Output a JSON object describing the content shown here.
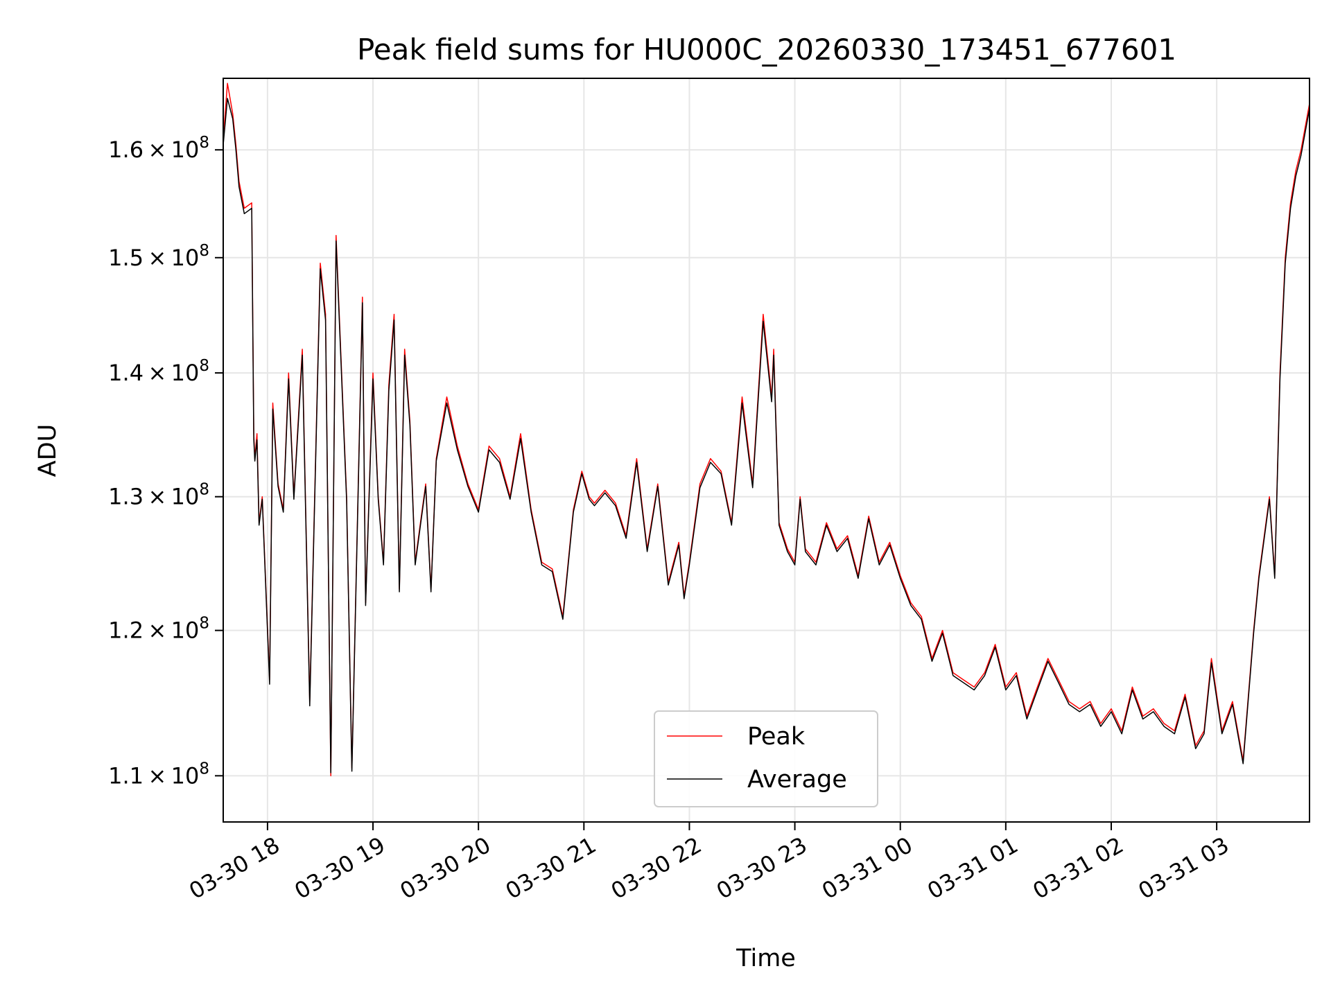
{
  "chart_data": {
    "type": "line",
    "title": "Peak field sums for HU000C_20260330_173451_677601",
    "xlabel": "Time",
    "ylabel": "ADU",
    "y_scale": "log",
    "ylim": [
      107000000,
      167000000
    ],
    "xlim_hours": [
      -0.42,
      9.88
    ],
    "x_ticks": [
      {
        "label": "03-30 18",
        "hour": 0
      },
      {
        "label": "03-30 19",
        "hour": 1
      },
      {
        "label": "03-30 20",
        "hour": 2
      },
      {
        "label": "03-30 21",
        "hour": 3
      },
      {
        "label": "03-30 22",
        "hour": 4
      },
      {
        "label": "03-30 23",
        "hour": 5
      },
      {
        "label": "03-31 00",
        "hour": 6
      },
      {
        "label": "03-31 01",
        "hour": 7
      },
      {
        "label": "03-31 02",
        "hour": 8
      },
      {
        "label": "03-31 03",
        "hour": 9
      }
    ],
    "y_ticks": [
      {
        "base": "1.1",
        "value": 110000000
      },
      {
        "base": "1.2",
        "value": 120000000
      },
      {
        "base": "1.3",
        "value": 130000000
      },
      {
        "base": "1.4",
        "value": 140000000
      },
      {
        "base": "1.5",
        "value": 150000000
      },
      {
        "base": "1.6",
        "value": 160000000
      }
    ],
    "y_tick_mult": "×",
    "y_tick_power_base": "10",
    "y_tick_exponent": "8",
    "grid": true,
    "legend_position": "lower-center",
    "series": [
      {
        "name": "Peak",
        "color": "#ff0000",
        "x": [
          -0.42,
          -0.38,
          -0.33,
          -0.3,
          -0.27,
          -0.22,
          -0.15,
          -0.13,
          -0.12,
          -0.1,
          -0.08,
          -0.05,
          0.02,
          0.05,
          0.1,
          0.15,
          0.2,
          0.25,
          0.33,
          0.4,
          0.5,
          0.55,
          0.6,
          0.65,
          0.75,
          0.8,
          0.9,
          0.93,
          1.0,
          1.05,
          1.1,
          1.15,
          1.2,
          1.25,
          1.3,
          1.35,
          1.4,
          1.45,
          1.5,
          1.55,
          1.6,
          1.7,
          1.8,
          1.9,
          2.0,
          2.1,
          2.2,
          2.3,
          2.4,
          2.5,
          2.6,
          2.7,
          2.8,
          2.9,
          2.98,
          3.05,
          3.1,
          3.2,
          3.3,
          3.4,
          3.5,
          3.6,
          3.7,
          3.8,
          3.9,
          3.95,
          4.0,
          4.1,
          4.2,
          4.3,
          4.4,
          4.5,
          4.6,
          4.7,
          4.78,
          4.8,
          4.85,
          4.93,
          5.0,
          5.05,
          5.1,
          5.2,
          5.3,
          5.4,
          5.5,
          5.6,
          5.7,
          5.8,
          5.9,
          6.0,
          6.1,
          6.2,
          6.3,
          6.4,
          6.5,
          6.6,
          6.7,
          6.8,
          6.9,
          7.0,
          7.1,
          7.2,
          7.3,
          7.4,
          7.5,
          7.6,
          7.7,
          7.8,
          7.9,
          8.0,
          8.1,
          8.2,
          8.3,
          8.4,
          8.5,
          8.6,
          8.7,
          8.8,
          8.88,
          8.95,
          9.05,
          9.15,
          9.25,
          9.35,
          9.4,
          9.5,
          9.55,
          9.6,
          9.65,
          9.7,
          9.75,
          9.8,
          9.88
        ],
        "values": [
          161000000,
          166500000,
          163500000,
          160500000,
          157000000,
          154500000,
          155000000,
          135000000,
          133000000,
          135000000,
          128000000,
          130000000,
          116500000,
          137500000,
          131000000,
          129000000,
          140000000,
          130000000,
          142000000,
          115000000,
          149500000,
          145000000,
          110000000,
          152000000,
          130000000,
          110500000,
          146500000,
          122000000,
          140000000,
          130000000,
          125000000,
          139000000,
          145000000,
          123000000,
          142000000,
          136000000,
          125000000,
          128000000,
          131000000,
          123000000,
          133000000,
          138000000,
          134000000,
          131000000,
          129000000,
          134000000,
          133000000,
          130000000,
          135000000,
          129000000,
          125000000,
          124500000,
          121000000,
          129000000,
          132000000,
          130000000,
          129500000,
          130500000,
          129500000,
          127000000,
          133000000,
          126000000,
          131000000,
          123500000,
          126500000,
          122500000,
          125000000,
          131000000,
          133000000,
          132000000,
          128000000,
          138000000,
          131000000,
          145000000,
          138000000,
          142000000,
          128000000,
          126000000,
          125000000,
          130000000,
          126000000,
          125000000,
          128000000,
          126000000,
          127000000,
          124000000,
          128500000,
          125000000,
          126500000,
          124000000,
          122000000,
          121000000,
          118000000,
          120000000,
          117000000,
          116500000,
          116000000,
          117000000,
          119000000,
          116000000,
          117000000,
          114000000,
          116000000,
          118000000,
          116500000,
          115000000,
          114500000,
          115000000,
          113500000,
          114500000,
          113000000,
          116000000,
          114000000,
          114500000,
          113500000,
          113000000,
          115500000,
          112000000,
          113000000,
          118000000,
          113000000,
          115000000,
          111000000,
          120000000,
          124000000,
          130000000,
          124000000,
          140000000,
          150000000,
          155000000,
          158000000,
          160000000,
          164500000
        ],
        "line_width": 1
      },
      {
        "name": "Average",
        "color": "#000000",
        "x": [
          -0.42,
          -0.38,
          -0.33,
          -0.3,
          -0.27,
          -0.22,
          -0.15,
          -0.13,
          -0.12,
          -0.1,
          -0.08,
          -0.05,
          0.02,
          0.05,
          0.1,
          0.15,
          0.2,
          0.25,
          0.33,
          0.4,
          0.5,
          0.55,
          0.6,
          0.65,
          0.75,
          0.8,
          0.9,
          0.93,
          1.0,
          1.05,
          1.1,
          1.15,
          1.2,
          1.25,
          1.3,
          1.35,
          1.4,
          1.45,
          1.5,
          1.55,
          1.6,
          1.7,
          1.8,
          1.9,
          2.0,
          2.1,
          2.2,
          2.3,
          2.4,
          2.5,
          2.6,
          2.7,
          2.8,
          2.9,
          2.98,
          3.05,
          3.1,
          3.2,
          3.3,
          3.4,
          3.5,
          3.6,
          3.7,
          3.8,
          3.9,
          3.95,
          4.0,
          4.1,
          4.2,
          4.3,
          4.4,
          4.5,
          4.6,
          4.7,
          4.78,
          4.8,
          4.85,
          4.93,
          5.0,
          5.05,
          5.1,
          5.2,
          5.3,
          5.4,
          5.5,
          5.6,
          5.7,
          5.8,
          5.9,
          6.0,
          6.1,
          6.2,
          6.3,
          6.4,
          6.5,
          6.6,
          6.7,
          6.8,
          6.9,
          7.0,
          7.1,
          7.2,
          7.3,
          7.4,
          7.5,
          7.6,
          7.7,
          7.8,
          7.9,
          8.0,
          8.1,
          8.2,
          8.3,
          8.4,
          8.5,
          8.6,
          8.7,
          8.8,
          8.88,
          8.95,
          9.05,
          9.15,
          9.25,
          9.35,
          9.4,
          9.5,
          9.55,
          9.6,
          9.65,
          9.7,
          9.75,
          9.8,
          9.88
        ],
        "values": [
          160500000,
          165000000,
          163000000,
          160000000,
          156500000,
          154000000,
          154500000,
          134500000,
          132800000,
          134500000,
          127800000,
          129800000,
          116200000,
          137000000,
          130800000,
          128800000,
          139500000,
          129800000,
          141500000,
          114700000,
          149000000,
          144500000,
          110200000,
          151500000,
          129700000,
          110300000,
          146000000,
          121800000,
          139500000,
          129800000,
          124800000,
          138500000,
          144500000,
          122800000,
          141500000,
          135700000,
          124800000,
          127800000,
          130800000,
          122800000,
          132800000,
          137500000,
          133700000,
          130800000,
          128800000,
          133700000,
          132700000,
          129800000,
          134600000,
          128800000,
          124800000,
          124300000,
          120800000,
          128800000,
          131800000,
          129800000,
          129300000,
          130300000,
          129300000,
          126800000,
          132700000,
          125800000,
          130800000,
          123300000,
          126300000,
          122300000,
          124800000,
          130700000,
          132700000,
          131800000,
          127800000,
          137500000,
          130700000,
          144400000,
          137600000,
          141500000,
          127800000,
          125800000,
          124800000,
          129800000,
          125800000,
          124800000,
          127800000,
          125800000,
          126800000,
          123800000,
          128300000,
          124800000,
          126300000,
          123800000,
          121800000,
          120800000,
          117800000,
          119800000,
          116800000,
          116300000,
          115800000,
          116800000,
          118800000,
          115800000,
          116800000,
          113800000,
          115800000,
          117800000,
          116300000,
          114800000,
          114300000,
          114800000,
          113300000,
          114300000,
          112800000,
          115800000,
          113800000,
          114300000,
          113300000,
          112800000,
          115300000,
          111800000,
          112800000,
          117700000,
          112800000,
          114800000,
          110800000,
          119800000,
          123800000,
          129800000,
          123800000,
          139500000,
          149500000,
          154500000,
          157500000,
          159500000,
          164000000
        ],
        "line_width": 1
      }
    ]
  }
}
